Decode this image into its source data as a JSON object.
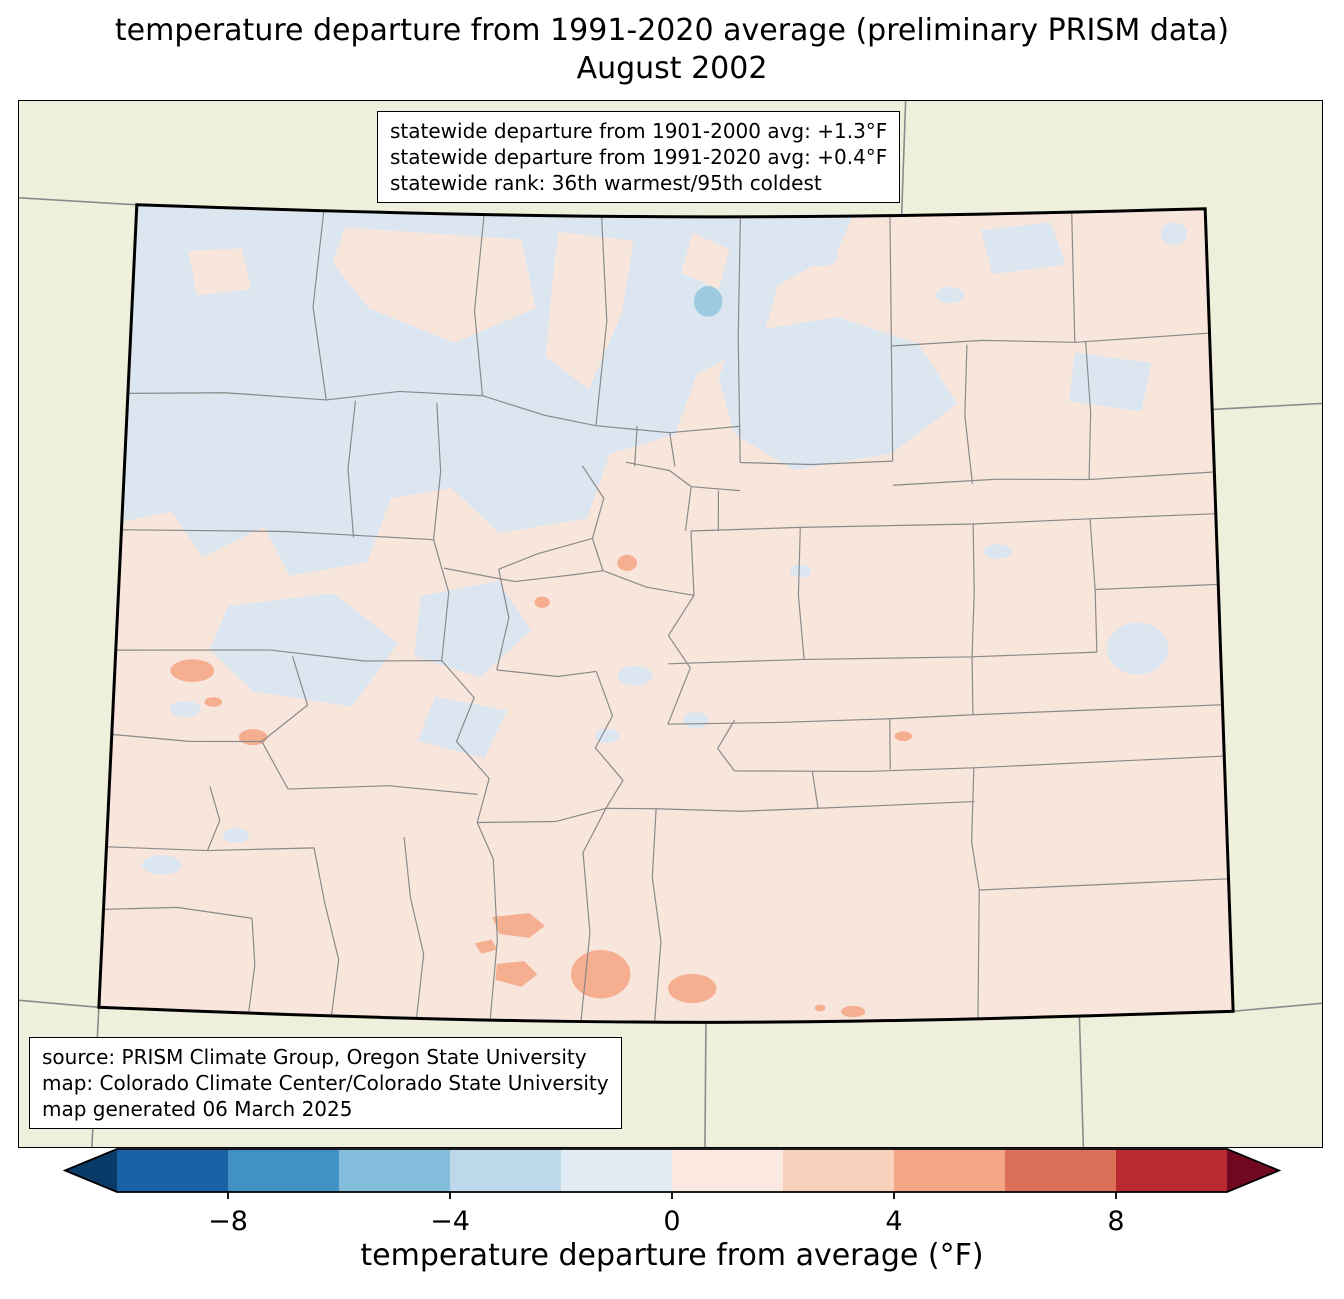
{
  "title": {
    "line1": "temperature departure from 1991-2020 average (preliminary PRISM data)",
    "line2": "August 2002"
  },
  "stats_box": {
    "line1": "statewide departure from 1901-2000 avg: +1.3°F",
    "line2": "statewide departure from 1991-2020 avg: +0.4°F",
    "line3": "statewide rank: 36th warmest/95th coldest"
  },
  "source_box": {
    "line1": "source: PRISM Climate Group, Oregon State University",
    "line2": "map: Colorado Climate Center/Colorado State University",
    "line3": "map generated 06 March 2025"
  },
  "colorbar": {
    "label": "temperature departure from average (°F)",
    "tick_labels": [
      "−8",
      "−4",
      "0",
      "4",
      "8"
    ],
    "segment_colors": [
      "#1a61a6",
      "#4191c5",
      "#84bcdb",
      "#bcd8ea",
      "#e1ecf4",
      "#fbe9e1",
      "#f9d0bb",
      "#f4a583",
      "#dc6f57",
      "#bb2a33"
    ],
    "under_color": "#0a3a68",
    "over_color": "#70091f"
  },
  "map": {
    "colors": {
      "outside": "#eef0db",
      "warm_base": "#f8e6dd",
      "cool_patch": "#dbe6f0",
      "cool_spot": "#9ec9df",
      "warm_spot": "#f5ae90",
      "county_line": "#8a8a8a",
      "state_line": "#8a8a8a",
      "border": "#000000"
    }
  }
}
